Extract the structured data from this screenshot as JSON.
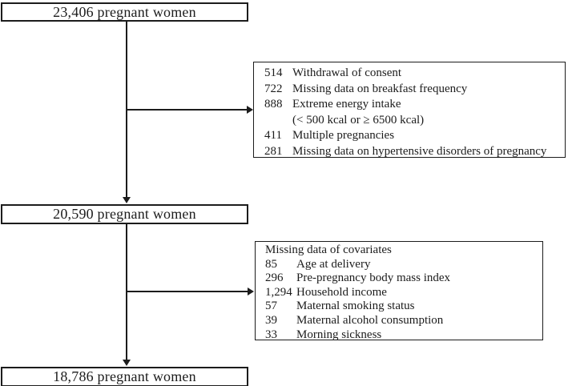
{
  "colors": {
    "ink": "#1c1c1c",
    "background": "#ffffff"
  },
  "boxes": {
    "initial": "23,406 pregnant women",
    "after_first_exclusion": "20,590 pregnant women",
    "final": "18,786 pregnant women"
  },
  "exclusions": {
    "first": {
      "items": [
        {
          "n": "514",
          "label": "Withdrawal of consent"
        },
        {
          "n": "722",
          "label": "Missing data on breakfast frequency"
        },
        {
          "n": "888",
          "label": "Extreme energy intake"
        },
        {
          "n": "",
          "label": "(< 500 kcal or ≥ 6500 kcal)"
        },
        {
          "n": "411",
          "label": "Multiple pregnancies"
        },
        {
          "n": "281",
          "label": "Missing data on hypertensive disorders of pregnancy"
        }
      ]
    },
    "second": {
      "header": "Missing data of covariates",
      "items": [
        {
          "n": "85",
          "label": "Age at delivery"
        },
        {
          "n": "296",
          "label": "Pre-pregnancy body mass index"
        },
        {
          "n": "1,294",
          "label": "Household income"
        },
        {
          "n": "57",
          "label": "Maternal smoking status"
        },
        {
          "n": "39",
          "label": "Maternal alcohol consumption"
        },
        {
          "n": "33",
          "label": "Morning sickness"
        }
      ]
    }
  }
}
